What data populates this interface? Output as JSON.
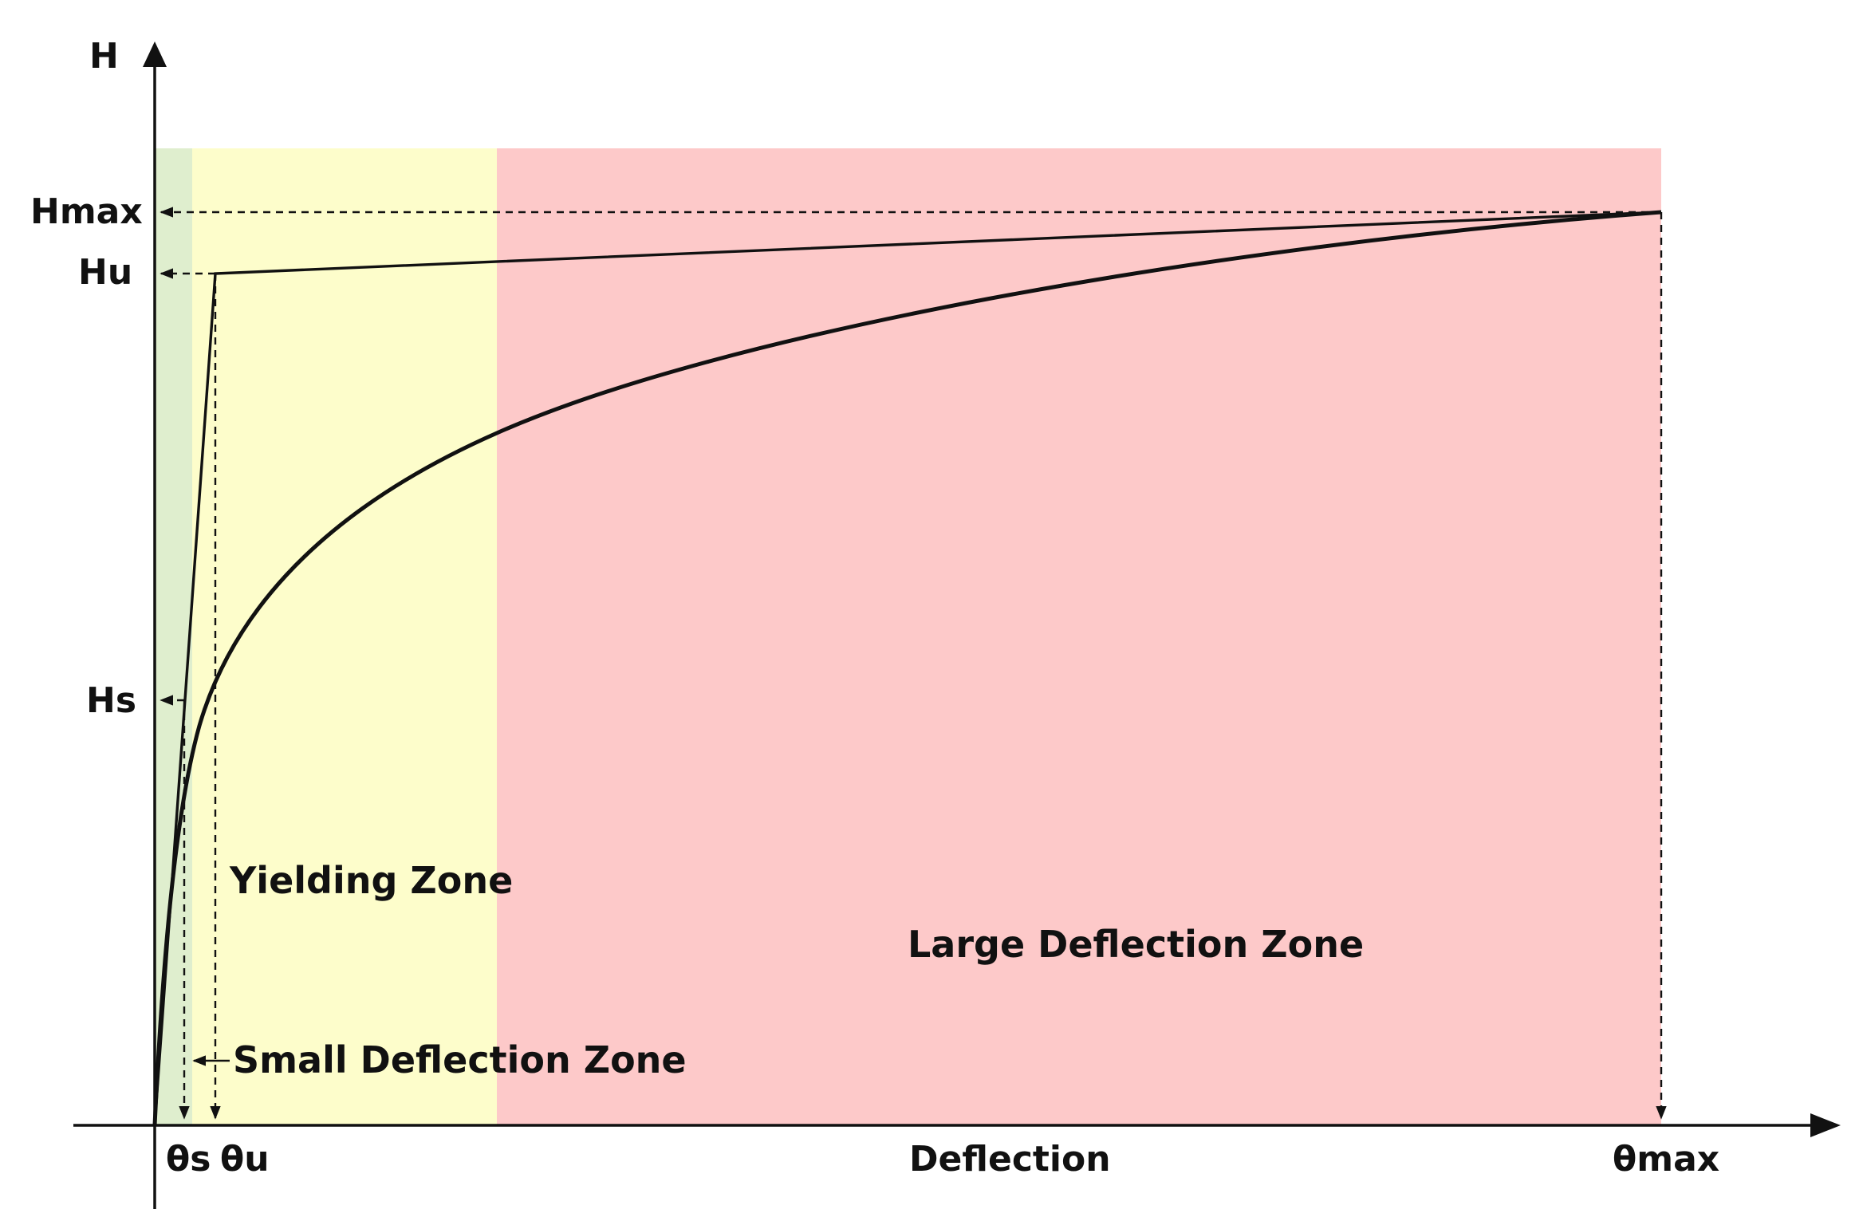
{
  "labels": {
    "y_axis": "H",
    "x_axis": "Deflection",
    "h_max": "Hmax",
    "h_u": "Hu",
    "h_s": "Hs",
    "theta_s": "θs",
    "theta_u": "θu",
    "theta_max": "θmax"
  },
  "zones": [
    {
      "id": "small",
      "label": "Small Deflection Zone",
      "color": "#dfeece"
    },
    {
      "id": "yielding",
      "label": "Yielding Zone",
      "color": "#fdfdcb"
    },
    {
      "id": "large",
      "label": "Large Deflection Zone",
      "color": "#fdc9c9"
    }
  ],
  "colors": {
    "axis": "#111111",
    "curve": "#111111",
    "background": "#ffffff"
  }
}
